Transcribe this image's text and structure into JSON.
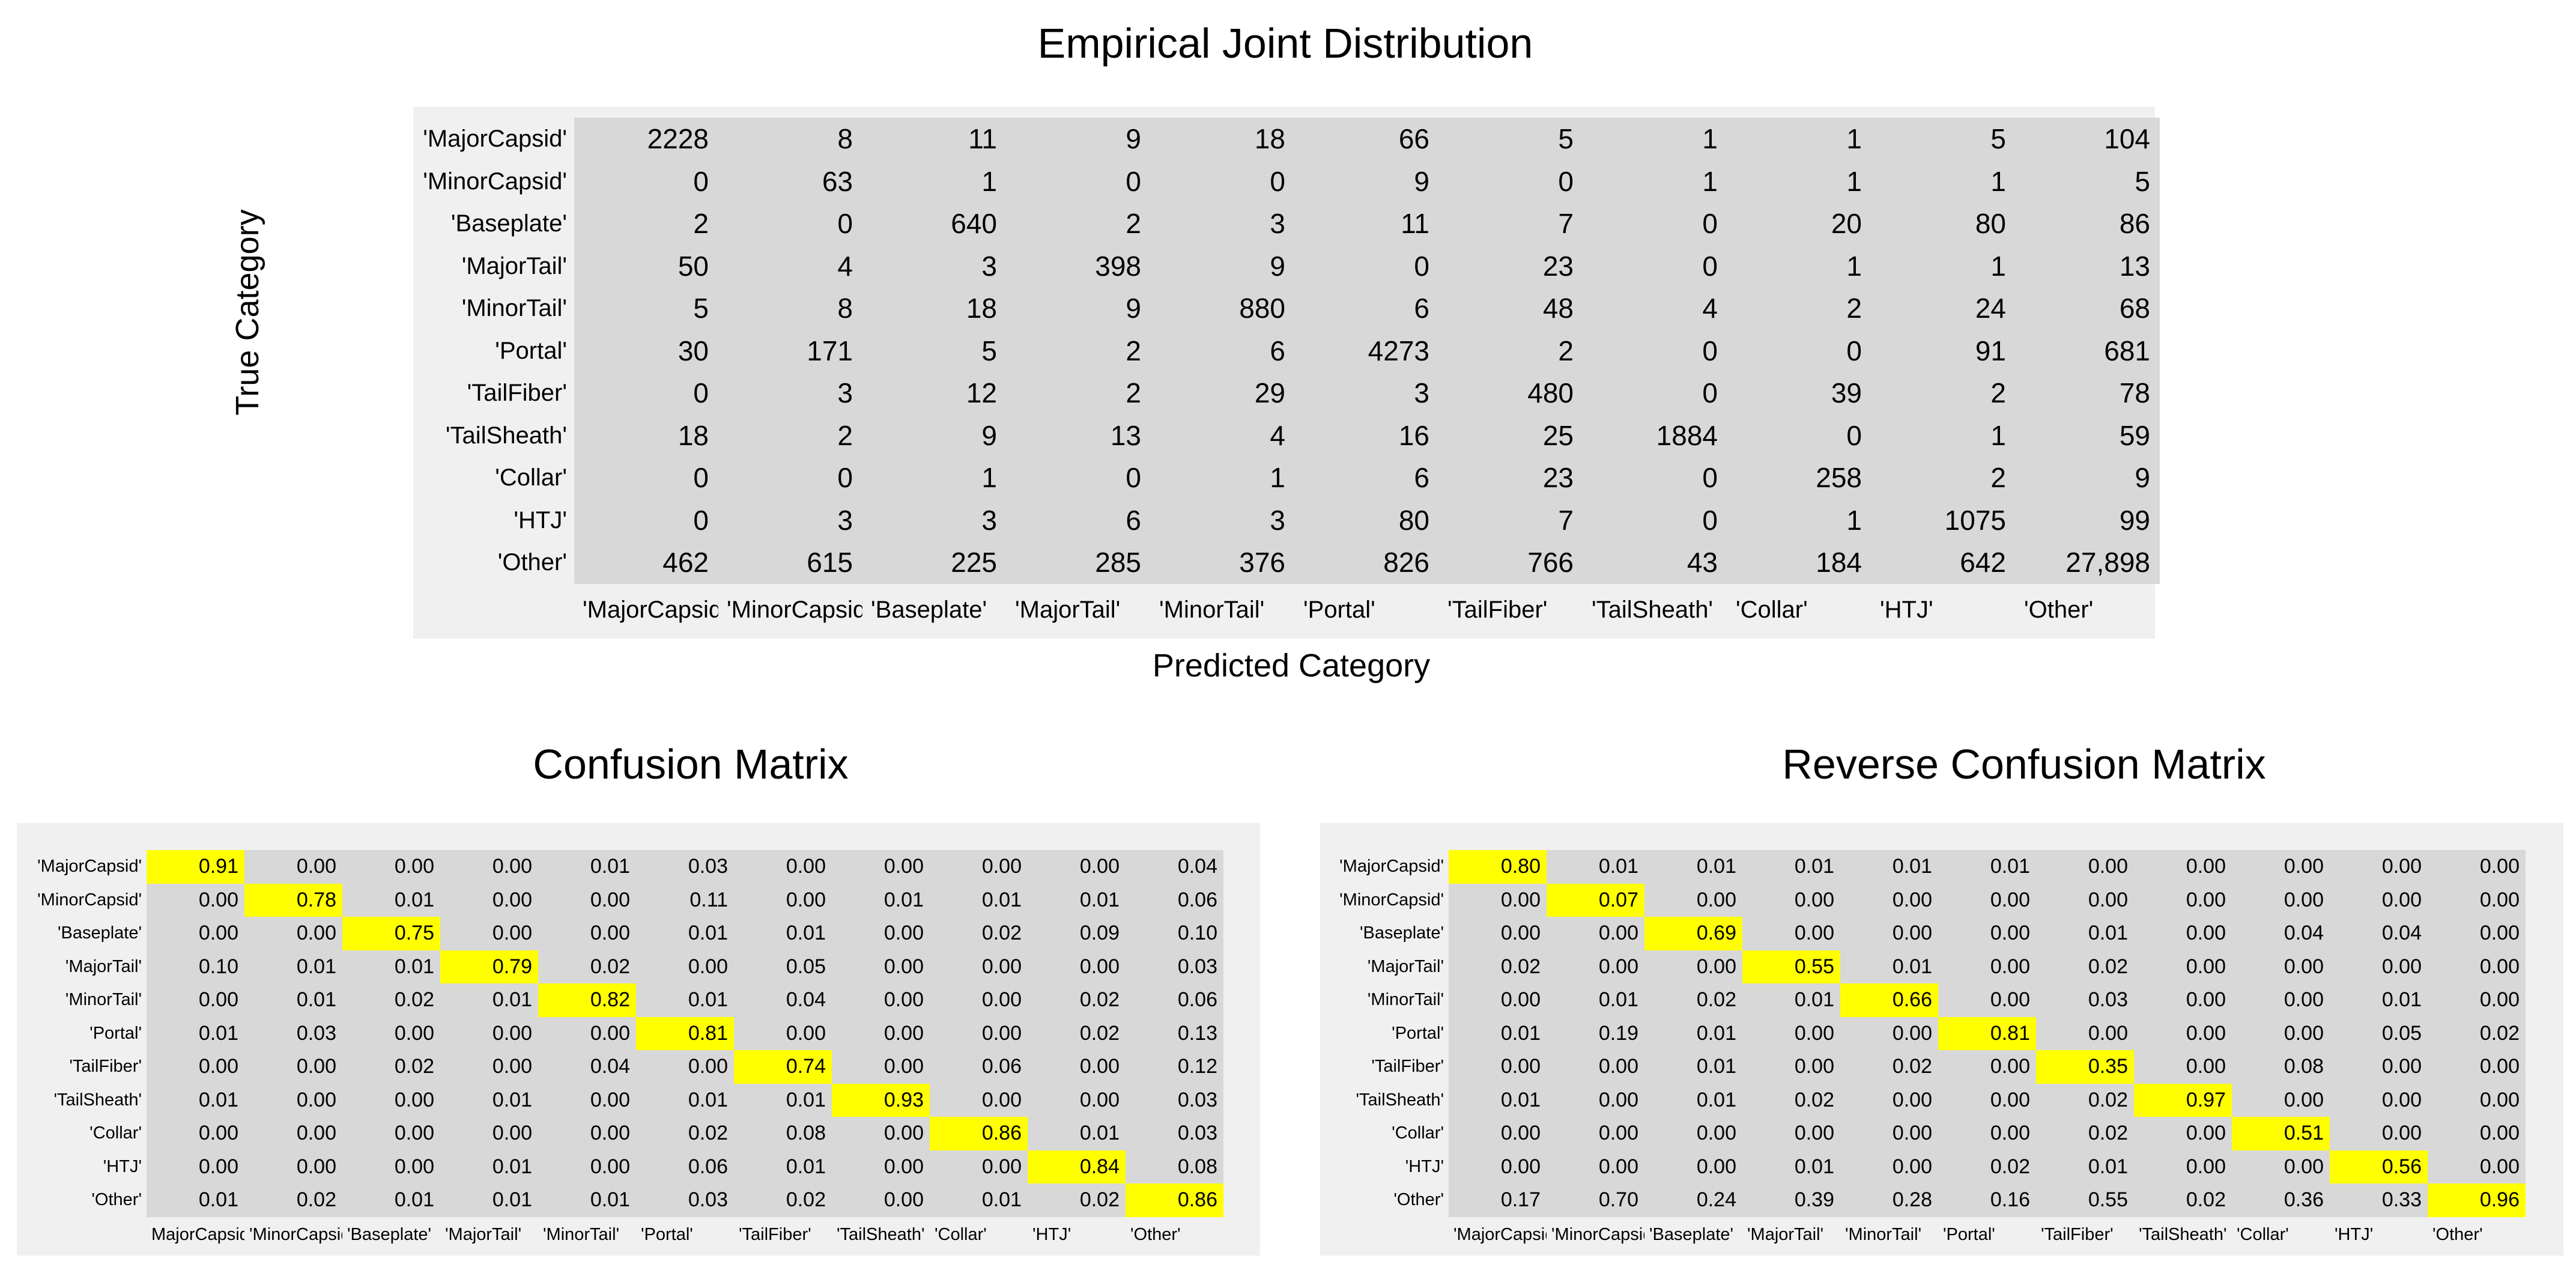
{
  "joint": {
    "title": "Empirical Joint Distribution",
    "xlabel": "Predicted Category",
    "ylabel": "True Category",
    "row_labels": [
      "'MajorCapsid'",
      "'MinorCapsid'",
      "'Baseplate'",
      "'MajorTail'",
      "'MinorTail'",
      "'Portal'",
      "'TailFiber'",
      "'TailSheath'",
      "'Collar'",
      "'HTJ'",
      "'Other'"
    ],
    "col_labels": [
      "'MajorCapsid'",
      "'MinorCapsid'",
      "'Baseplate'",
      "'MajorTail'",
      "'MinorTail'",
      "'Portal'",
      "'TailFiber'",
      "'TailSheath'",
      "'Collar'",
      "'HTJ'",
      "'Other'"
    ],
    "cells": [
      [
        "2228",
        "8",
        "11",
        "9",
        "18",
        "66",
        "5",
        "1",
        "1",
        "5",
        "104"
      ],
      [
        "0",
        "63",
        "1",
        "0",
        "0",
        "9",
        "0",
        "1",
        "1",
        "1",
        "5"
      ],
      [
        "2",
        "0",
        "640",
        "2",
        "3",
        "11",
        "7",
        "0",
        "20",
        "80",
        "86"
      ],
      [
        "50",
        "4",
        "3",
        "398",
        "9",
        "0",
        "23",
        "0",
        "1",
        "1",
        "13"
      ],
      [
        "5",
        "8",
        "18",
        "9",
        "880",
        "6",
        "48",
        "4",
        "2",
        "24",
        "68"
      ],
      [
        "30",
        "171",
        "5",
        "2",
        "6",
        "4273",
        "2",
        "0",
        "0",
        "91",
        "681"
      ],
      [
        "0",
        "3",
        "12",
        "2",
        "29",
        "3",
        "480",
        "0",
        "39",
        "2",
        "78"
      ],
      [
        "18",
        "2",
        "9",
        "13",
        "4",
        "16",
        "25",
        "1884",
        "0",
        "1",
        "59"
      ],
      [
        "0",
        "0",
        "1",
        "0",
        "1",
        "6",
        "23",
        "0",
        "258",
        "2",
        "9"
      ],
      [
        "0",
        "3",
        "3",
        "6",
        "3",
        "80",
        "7",
        "0",
        "1",
        "1075",
        "99"
      ],
      [
        "462",
        "615",
        "225",
        "285",
        "376",
        "826",
        "766",
        "43",
        "184",
        "642",
        "27,898"
      ]
    ]
  },
  "confusion": {
    "title": "Confusion Matrix",
    "highlight_color": "#ffff00",
    "row_labels": [
      "'MajorCapsid'",
      "'MinorCapsid'",
      "'Baseplate'",
      "'MajorTail'",
      "'MinorTail'",
      "'Portal'",
      "'TailFiber'",
      "'TailSheath'",
      "'Collar'",
      "'HTJ'",
      "'Other'"
    ],
    "col_labels": [
      "MajorCapsid",
      "'MinorCapsid'",
      "'Baseplate'",
      "'MajorTail'",
      "'MinorTail'",
      "'Portal'",
      "'TailFiber'",
      "'TailSheath'",
      "'Collar'",
      "'HTJ'",
      "'Other'"
    ],
    "cells": [
      [
        "0.91",
        "0.00",
        "0.00",
        "0.00",
        "0.01",
        "0.03",
        "0.00",
        "0.00",
        "0.00",
        "0.00",
        "0.04"
      ],
      [
        "0.00",
        "0.78",
        "0.01",
        "0.00",
        "0.00",
        "0.11",
        "0.00",
        "0.01",
        "0.01",
        "0.01",
        "0.06"
      ],
      [
        "0.00",
        "0.00",
        "0.75",
        "0.00",
        "0.00",
        "0.01",
        "0.01",
        "0.00",
        "0.02",
        "0.09",
        "0.10"
      ],
      [
        "0.10",
        "0.01",
        "0.01",
        "0.79",
        "0.02",
        "0.00",
        "0.05",
        "0.00",
        "0.00",
        "0.00",
        "0.03"
      ],
      [
        "0.00",
        "0.01",
        "0.02",
        "0.01",
        "0.82",
        "0.01",
        "0.04",
        "0.00",
        "0.00",
        "0.02",
        "0.06"
      ],
      [
        "0.01",
        "0.03",
        "0.00",
        "0.00",
        "0.00",
        "0.81",
        "0.00",
        "0.00",
        "0.00",
        "0.02",
        "0.13"
      ],
      [
        "0.00",
        "0.00",
        "0.02",
        "0.00",
        "0.04",
        "0.00",
        "0.74",
        "0.00",
        "0.06",
        "0.00",
        "0.12"
      ],
      [
        "0.01",
        "0.00",
        "0.00",
        "0.01",
        "0.00",
        "0.01",
        "0.01",
        "0.93",
        "0.00",
        "0.00",
        "0.03"
      ],
      [
        "0.00",
        "0.00",
        "0.00",
        "0.00",
        "0.00",
        "0.02",
        "0.08",
        "0.00",
        "0.86",
        "0.01",
        "0.03"
      ],
      [
        "0.00",
        "0.00",
        "0.00",
        "0.01",
        "0.00",
        "0.06",
        "0.01",
        "0.00",
        "0.00",
        "0.84",
        "0.08"
      ],
      [
        "0.01",
        "0.02",
        "0.01",
        "0.01",
        "0.01",
        "0.03",
        "0.02",
        "0.00",
        "0.01",
        "0.02",
        "0.86"
      ]
    ]
  },
  "reverse": {
    "title": "Reverse Confusion Matrix",
    "highlight_color": "#ffff00",
    "row_labels": [
      "'MajorCapsid'",
      "'MinorCapsid'",
      "'Baseplate'",
      "'MajorTail'",
      "'MinorTail'",
      "'Portal'",
      "'TailFiber'",
      "'TailSheath'",
      "'Collar'",
      "'HTJ'",
      "'Other'"
    ],
    "col_labels": [
      "'MajorCapsid'",
      "'MinorCapsid'",
      "'Baseplate'",
      "'MajorTail'",
      "'MinorTail'",
      "'Portal'",
      "'TailFiber'",
      "'TailSheath'",
      "'Collar'",
      "'HTJ'",
      "'Other'"
    ],
    "cells": [
      [
        "0.80",
        "0.01",
        "0.01",
        "0.01",
        "0.01",
        "0.01",
        "0.00",
        "0.00",
        "0.00",
        "0.00",
        "0.00"
      ],
      [
        "0.00",
        "0.07",
        "0.00",
        "0.00",
        "0.00",
        "0.00",
        "0.00",
        "0.00",
        "0.00",
        "0.00",
        "0.00"
      ],
      [
        "0.00",
        "0.00",
        "0.69",
        "0.00",
        "0.00",
        "0.00",
        "0.01",
        "0.00",
        "0.04",
        "0.04",
        "0.00"
      ],
      [
        "0.02",
        "0.00",
        "0.00",
        "0.55",
        "0.01",
        "0.00",
        "0.02",
        "0.00",
        "0.00",
        "0.00",
        "0.00"
      ],
      [
        "0.00",
        "0.01",
        "0.02",
        "0.01",
        "0.66",
        "0.00",
        "0.03",
        "0.00",
        "0.00",
        "0.01",
        "0.00"
      ],
      [
        "0.01",
        "0.19",
        "0.01",
        "0.00",
        "0.00",
        "0.81",
        "0.00",
        "0.00",
        "0.00",
        "0.05",
        "0.02"
      ],
      [
        "0.00",
        "0.00",
        "0.01",
        "0.00",
        "0.02",
        "0.00",
        "0.35",
        "0.00",
        "0.08",
        "0.00",
        "0.00"
      ],
      [
        "0.01",
        "0.00",
        "0.01",
        "0.02",
        "0.00",
        "0.00",
        "0.02",
        "0.97",
        "0.00",
        "0.00",
        "0.00"
      ],
      [
        "0.00",
        "0.00",
        "0.00",
        "0.00",
        "0.00",
        "0.00",
        "0.02",
        "0.00",
        "0.51",
        "0.00",
        "0.00"
      ],
      [
        "0.00",
        "0.00",
        "0.00",
        "0.01",
        "0.00",
        "0.02",
        "0.01",
        "0.00",
        "0.00",
        "0.56",
        "0.00"
      ],
      [
        "0.17",
        "0.70",
        "0.24",
        "0.39",
        "0.28",
        "0.16",
        "0.55",
        "0.02",
        "0.36",
        "0.33",
        "0.96"
      ]
    ]
  },
  "chart_data": [
    {
      "type": "table",
      "title": "Empirical Joint Distribution",
      "xlabel": "Predicted Category",
      "ylabel": "True Category",
      "rows": [
        "'MajorCapsid'",
        "'MinorCapsid'",
        "'Baseplate'",
        "'MajorTail'",
        "'MinorTail'",
        "'Portal'",
        "'TailFiber'",
        "'TailSheath'",
        "'Collar'",
        "'HTJ'",
        "'Other'"
      ],
      "columns": [
        "'MajorCapsid'",
        "'MinorCapsid'",
        "'Baseplate'",
        "'MajorTail'",
        "'MinorTail'",
        "'Portal'",
        "'TailFiber'",
        "'TailSheath'",
        "'Collar'",
        "'HTJ'",
        "'Other'"
      ],
      "values": [
        [
          2228,
          8,
          11,
          9,
          18,
          66,
          5,
          1,
          1,
          5,
          104
        ],
        [
          0,
          63,
          1,
          0,
          0,
          9,
          0,
          1,
          1,
          1,
          5
        ],
        [
          2,
          0,
          640,
          2,
          3,
          11,
          7,
          0,
          20,
          80,
          86
        ],
        [
          50,
          4,
          3,
          398,
          9,
          0,
          23,
          0,
          1,
          1,
          13
        ],
        [
          5,
          8,
          18,
          9,
          880,
          6,
          48,
          4,
          2,
          24,
          68
        ],
        [
          30,
          171,
          5,
          2,
          6,
          4273,
          2,
          0,
          0,
          91,
          681
        ],
        [
          0,
          3,
          12,
          2,
          29,
          3,
          480,
          0,
          39,
          2,
          78
        ],
        [
          18,
          2,
          9,
          13,
          4,
          16,
          25,
          1884,
          0,
          1,
          59
        ],
        [
          0,
          0,
          1,
          0,
          1,
          6,
          23,
          0,
          258,
          2,
          9
        ],
        [
          0,
          3,
          3,
          6,
          3,
          80,
          7,
          0,
          1,
          1075,
          99
        ],
        [
          462,
          615,
          225,
          285,
          376,
          826,
          766,
          43,
          184,
          642,
          27898
        ]
      ]
    },
    {
      "type": "heatmap",
      "title": "Confusion Matrix",
      "rows": [
        "'MajorCapsid'",
        "'MinorCapsid'",
        "'Baseplate'",
        "'MajorTail'",
        "'MinorTail'",
        "'Portal'",
        "'TailFiber'",
        "'TailSheath'",
        "'Collar'",
        "'HTJ'",
        "'Other'"
      ],
      "columns": [
        "MajorCapsid",
        "'MinorCapsid'",
        "'Baseplate'",
        "'MajorTail'",
        "'MinorTail'",
        "'Portal'",
        "'TailFiber'",
        "'TailSheath'",
        "'Collar'",
        "'HTJ'",
        "'Other'"
      ],
      "values": [
        [
          0.91,
          0.0,
          0.0,
          0.0,
          0.01,
          0.03,
          0.0,
          0.0,
          0.0,
          0.0,
          0.04
        ],
        [
          0.0,
          0.78,
          0.01,
          0.0,
          0.0,
          0.11,
          0.0,
          0.01,
          0.01,
          0.01,
          0.06
        ],
        [
          0.0,
          0.0,
          0.75,
          0.0,
          0.0,
          0.01,
          0.01,
          0.0,
          0.02,
          0.09,
          0.1
        ],
        [
          0.1,
          0.01,
          0.01,
          0.79,
          0.02,
          0.0,
          0.05,
          0.0,
          0.0,
          0.0,
          0.03
        ],
        [
          0.0,
          0.01,
          0.02,
          0.01,
          0.82,
          0.01,
          0.04,
          0.0,
          0.0,
          0.02,
          0.06
        ],
        [
          0.01,
          0.03,
          0.0,
          0.0,
          0.0,
          0.81,
          0.0,
          0.0,
          0.0,
          0.02,
          0.13
        ],
        [
          0.0,
          0.0,
          0.02,
          0.0,
          0.04,
          0.0,
          0.74,
          0.0,
          0.06,
          0.0,
          0.12
        ],
        [
          0.01,
          0.0,
          0.0,
          0.01,
          0.0,
          0.01,
          0.01,
          0.93,
          0.0,
          0.0,
          0.03
        ],
        [
          0.0,
          0.0,
          0.0,
          0.0,
          0.0,
          0.02,
          0.08,
          0.0,
          0.86,
          0.01,
          0.03
        ],
        [
          0.0,
          0.0,
          0.0,
          0.01,
          0.0,
          0.06,
          0.01,
          0.0,
          0.0,
          0.84,
          0.08
        ],
        [
          0.01,
          0.02,
          0.01,
          0.01,
          0.01,
          0.03,
          0.02,
          0.0,
          0.01,
          0.02,
          0.86
        ]
      ]
    },
    {
      "type": "heatmap",
      "title": "Reverse Confusion Matrix",
      "rows": [
        "'MajorCapsid'",
        "'MinorCapsid'",
        "'Baseplate'",
        "'MajorTail'",
        "'MinorTail'",
        "'Portal'",
        "'TailFiber'",
        "'TailSheath'",
        "'Collar'",
        "'HTJ'",
        "'Other'"
      ],
      "columns": [
        "'MajorCapsid'",
        "'MinorCapsid'",
        "'Baseplate'",
        "'MajorTail'",
        "'MinorTail'",
        "'Portal'",
        "'TailFiber'",
        "'TailSheath'",
        "'Collar'",
        "'HTJ'",
        "'Other'"
      ],
      "values": [
        [
          0.8,
          0.01,
          0.01,
          0.01,
          0.01,
          0.01,
          0.0,
          0.0,
          0.0,
          0.0,
          0.0
        ],
        [
          0.0,
          0.07,
          0.0,
          0.0,
          0.0,
          0.0,
          0.0,
          0.0,
          0.0,
          0.0,
          0.0
        ],
        [
          0.0,
          0.0,
          0.69,
          0.0,
          0.0,
          0.0,
          0.01,
          0.0,
          0.04,
          0.04,
          0.0
        ],
        [
          0.02,
          0.0,
          0.0,
          0.55,
          0.01,
          0.0,
          0.02,
          0.0,
          0.0,
          0.0,
          0.0
        ],
        [
          0.0,
          0.01,
          0.02,
          0.01,
          0.66,
          0.0,
          0.03,
          0.0,
          0.0,
          0.01,
          0.0
        ],
        [
          0.01,
          0.19,
          0.01,
          0.0,
          0.0,
          0.81,
          0.0,
          0.0,
          0.0,
          0.05,
          0.02
        ],
        [
          0.0,
          0.0,
          0.01,
          0.0,
          0.02,
          0.0,
          0.35,
          0.0,
          0.08,
          0.0,
          0.0
        ],
        [
          0.01,
          0.0,
          0.01,
          0.02,
          0.0,
          0.0,
          0.02,
          0.97,
          0.0,
          0.0,
          0.0
        ],
        [
          0.0,
          0.0,
          0.0,
          0.0,
          0.0,
          0.0,
          0.02,
          0.0,
          0.51,
          0.0,
          0.0
        ],
        [
          0.0,
          0.0,
          0.0,
          0.01,
          0.0,
          0.02,
          0.01,
          0.0,
          0.0,
          0.56,
          0.0
        ],
        [
          0.17,
          0.7,
          0.24,
          0.39,
          0.28,
          0.16,
          0.55,
          0.02,
          0.36,
          0.33,
          0.96
        ]
      ]
    }
  ]
}
